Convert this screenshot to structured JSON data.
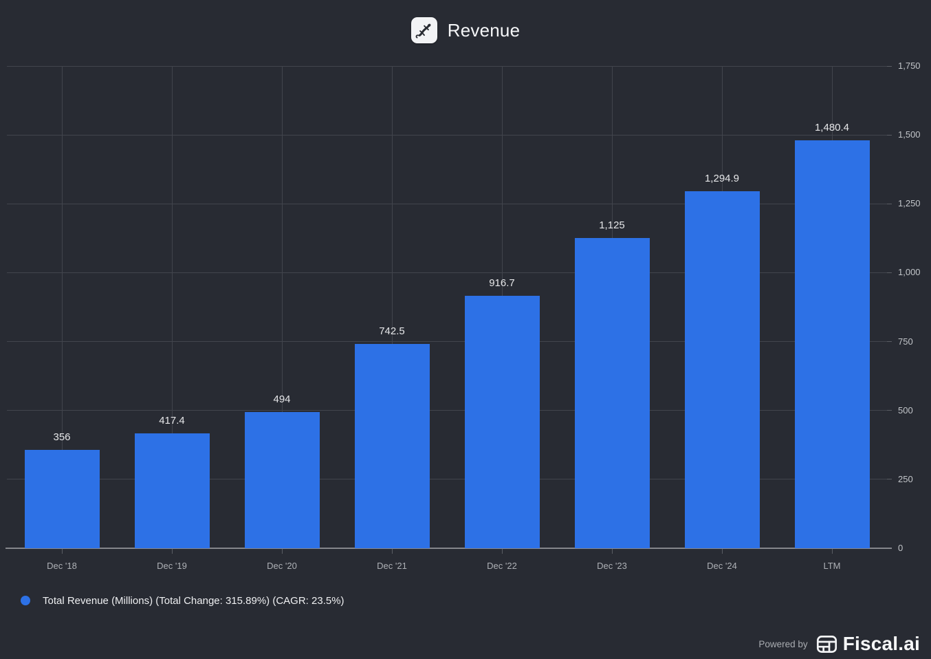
{
  "header": {
    "title": "Revenue",
    "logo": "gecko-company-logo-icon"
  },
  "chart_data": {
    "type": "bar",
    "title": "Revenue",
    "categories": [
      "Dec '18",
      "Dec '19",
      "Dec '20",
      "Dec '21",
      "Dec '22",
      "Dec '23",
      "Dec '24",
      "LTM"
    ],
    "values": [
      356,
      417.4,
      494,
      742.5,
      916.7,
      1125,
      1294.9,
      1480.4
    ],
    "value_labels": [
      "356",
      "417.4",
      "494",
      "742.5",
      "916.7",
      "1,125",
      "1,294.9",
      "1,480.4"
    ],
    "xlabel": "",
    "ylabel": "",
    "ylim": [
      0,
      1750
    ],
    "y_ticks": [
      0,
      250,
      500,
      750,
      1000,
      1250,
      1500,
      1750
    ],
    "y_tick_labels": [
      "0",
      "250",
      "500",
      "750",
      "1,000",
      "1,250",
      "1,500",
      "1,750"
    ],
    "y_axis_side": "right",
    "grid": true,
    "bar_color": "#2d71e6",
    "legend_position": "bottom-left"
  },
  "legend": {
    "label": "Total Revenue (Millions) (Total Change: 315.89%) (CAGR: 23.5%)",
    "marker": "circle",
    "marker_color": "#2d71e6"
  },
  "footer": {
    "powered_by": "Powered by",
    "brand": "Fiscal.ai"
  },
  "colors": {
    "background": "#282b33",
    "bar": "#2d71e6",
    "grid": "#42454d",
    "axis": "#85878c",
    "value_label": "#e6e7e9",
    "x_label": "#aeb1b6",
    "y_label": "#c2c5c9",
    "legend_text": "#eff0f2",
    "powered_by_text": "#a9acb1",
    "brand_text": "#f6f7f8"
  }
}
